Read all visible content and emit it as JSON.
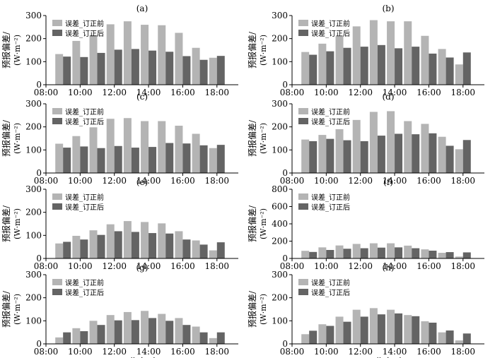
{
  "figure": {
    "ylabel_line1": "预报偏差/",
    "ylabel_line2": "(W·m⁻²)",
    "xlabel": "北京时"
  },
  "chart_data": [
    {
      "type": "bar",
      "panel": "(a)",
      "categories": [
        "09:00",
        "10:00",
        "11:00",
        "12:00",
        "13:00",
        "14:00",
        "15:00",
        "16:00",
        "17:00",
        "18:00"
      ],
      "series": [
        {
          "name": "误差_订正前",
          "values": [
            133,
            190,
            215,
            262,
            275,
            260,
            258,
            225,
            160,
            117
          ],
          "color": "#b4b4b4"
        },
        {
          "name": "误差_订正后",
          "values": [
            122,
            120,
            138,
            152,
            155,
            148,
            143,
            124,
            108,
            125
          ],
          "color": "#646464"
        }
      ],
      "xticks": [
        "08:00",
        "10:00",
        "12:00",
        "14:00",
        "16:00",
        "18:00"
      ],
      "yticks": [
        0,
        100,
        200,
        300
      ],
      "ylim": [
        0,
        300
      ],
      "legend": "top-left"
    },
    {
      "type": "bar",
      "panel": "(b)",
      "categories": [
        "09:00",
        "10:00",
        "11:00",
        "12:00",
        "13:00",
        "14:00",
        "15:00",
        "16:00",
        "17:00",
        "18:00"
      ],
      "series": [
        {
          "name": "误差_订正前",
          "values": [
            142,
            178,
            210,
            253,
            280,
            275,
            275,
            212,
            155,
            88
          ],
          "color": "#b4b4b4"
        },
        {
          "name": "误差_订正后",
          "values": [
            130,
            145,
            160,
            165,
            172,
            158,
            165,
            135,
            118,
            140
          ],
          "color": "#646464"
        }
      ],
      "xticks": [
        "08:00",
        "10:00",
        "12:00",
        "14:00",
        "16:00",
        "18:00"
      ],
      "yticks": [
        0,
        100,
        200,
        300
      ],
      "ylim": [
        0,
        300
      ],
      "legend": "top-left"
    },
    {
      "type": "bar",
      "panel": "(c)",
      "categories": [
        "09:00",
        "10:00",
        "11:00",
        "12:00",
        "13:00",
        "14:00",
        "15:00",
        "16:00",
        "17:00",
        "18:00"
      ],
      "series": [
        {
          "name": "误差_订正前",
          "values": [
            127,
            160,
            198,
            235,
            238,
            225,
            225,
            205,
            170,
            108
          ],
          "color": "#b4b4b4"
        },
        {
          "name": "误差_订正后",
          "values": [
            110,
            115,
            108,
            117,
            110,
            113,
            130,
            128,
            120,
            122
          ],
          "color": "#646464"
        }
      ],
      "xticks": [
        "08:00",
        "10:00",
        "12:00",
        "14:00",
        "16:00",
        "18:00"
      ],
      "yticks": [
        0,
        100,
        200,
        300
      ],
      "ylim": [
        0,
        300
      ],
      "legend": "top-left"
    },
    {
      "type": "bar",
      "panel": "(d)",
      "categories": [
        "09:00",
        "10:00",
        "11:00",
        "12:00",
        "13:00",
        "14:00",
        "15:00",
        "16:00",
        "17:00",
        "18:00"
      ],
      "series": [
        {
          "name": "误差_订正前",
          "values": [
            145,
            165,
            190,
            230,
            265,
            268,
            225,
            213,
            157,
            103
          ],
          "color": "#b4b4b4"
        },
        {
          "name": "误差_订正后",
          "values": [
            138,
            148,
            142,
            138,
            162,
            170,
            168,
            172,
            118,
            143
          ],
          "color": "#646464"
        }
      ],
      "xticks": [
        "08:00",
        "10:00",
        "12:00",
        "14:00",
        "16:00",
        "18:00"
      ],
      "yticks": [
        0,
        100,
        200,
        300
      ],
      "ylim": [
        0,
        300
      ],
      "legend": "top-left"
    },
    {
      "type": "bar",
      "panel": "(e)",
      "categories": [
        "09:00",
        "10:00",
        "11:00",
        "12:00",
        "13:00",
        "14:00",
        "15:00",
        "16:00",
        "17:00",
        "18:00"
      ],
      "series": [
        {
          "name": "误差_订正前",
          "values": [
            65,
            98,
            122,
            148,
            162,
            158,
            152,
            118,
            78,
            35
          ],
          "color": "#b4b4b4"
        },
        {
          "name": "误差_订正后",
          "values": [
            72,
            82,
            102,
            118,
            115,
            110,
            108,
            82,
            60,
            70
          ],
          "color": "#646464"
        }
      ],
      "xticks": [
        "08:00",
        "10:00",
        "12:00",
        "14:00",
        "16:00",
        "18:00"
      ],
      "yticks": [
        0,
        100,
        200,
        300
      ],
      "ylim": [
        0,
        300
      ],
      "legend": "top-left"
    },
    {
      "type": "bar",
      "panel": "(f)",
      "categories": [
        "09:00",
        "10:00",
        "11:00",
        "12:00",
        "13:00",
        "14:00",
        "15:00",
        "16:00",
        "17:00",
        "18:00"
      ],
      "series": [
        {
          "name": "误差_订正前",
          "values": [
            88,
            128,
            150,
            168,
            175,
            175,
            148,
            105,
            65,
            22
          ],
          "color": "#b4b4b4"
        },
        {
          "name": "误差_订正后",
          "values": [
            75,
            98,
            112,
            118,
            125,
            128,
            118,
            90,
            73,
            70
          ],
          "color": "#646464"
        }
      ],
      "xticks": [
        "08:00",
        "10:00",
        "12:00",
        "14:00",
        "16:00",
        "18:00"
      ],
      "yticks": [
        0,
        200,
        400,
        600,
        800
      ],
      "ylim": [
        0,
        800
      ],
      "legend": "top-left"
    },
    {
      "type": "bar",
      "panel": "(g)",
      "categories": [
        "09:00",
        "10:00",
        "11:00",
        "12:00",
        "13:00",
        "14:00",
        "15:00",
        "16:00",
        "17:00",
        "18:00"
      ],
      "series": [
        {
          "name": "误差_订正前",
          "values": [
            28,
            68,
            100,
            125,
            138,
            143,
            130,
            112,
            75,
            25
          ],
          "color": "#b4b4b4"
        },
        {
          "name": "误差_订正后",
          "values": [
            50,
            55,
            82,
            102,
            103,
            112,
            100,
            82,
            50,
            50
          ],
          "color": "#646464"
        }
      ],
      "xticks": [
        "08:00",
        "10:00",
        "12:00",
        "14:00",
        "16:00",
        "18:00"
      ],
      "yticks": [
        0,
        100,
        200,
        300
      ],
      "ylim": [
        0,
        300
      ],
      "legend": "top-left"
    },
    {
      "type": "bar",
      "panel": "(h)",
      "categories": [
        "09:00",
        "10:00",
        "11:00",
        "12:00",
        "13:00",
        "14:00",
        "15:00",
        "16:00",
        "17:00",
        "18:00"
      ],
      "series": [
        {
          "name": "误差_订正前",
          "values": [
            42,
            85,
            118,
            148,
            155,
            148,
            125,
            98,
            50,
            15
          ],
          "color": "#b4b4b4"
        },
        {
          "name": "误差_订正后",
          "values": [
            57,
            78,
            96,
            118,
            128,
            132,
            120,
            92,
            58,
            45
          ],
          "color": "#646464"
        }
      ],
      "xticks": [
        "08:00",
        "10:00",
        "12:00",
        "14:00",
        "16:00",
        "18:00"
      ],
      "yticks": [
        0,
        100,
        200,
        300
      ],
      "ylim": [
        0,
        300
      ],
      "legend": "top-left"
    }
  ]
}
